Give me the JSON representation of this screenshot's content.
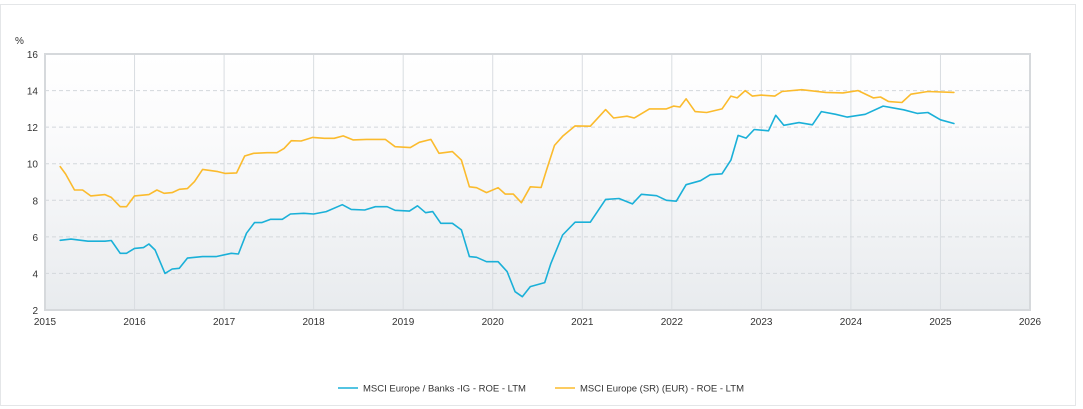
{
  "chart_data": {
    "type": "line",
    "title": "",
    "xlabel": "",
    "ylabel": "%",
    "xlim": [
      2015,
      2026
    ],
    "ylim": [
      2,
      16
    ],
    "x_ticks": [
      "2015",
      "2016",
      "2017",
      "2018",
      "2019",
      "2020",
      "2021",
      "2022",
      "2023",
      "2024",
      "2025",
      "2026"
    ],
    "y_ticks": [
      "2",
      "4",
      "6",
      "8",
      "10",
      "12",
      "14",
      "16"
    ],
    "grid": {
      "x": "solid",
      "y": "dashed"
    },
    "legend": "bottom",
    "series": [
      {
        "name": "MSCI Europe / Banks -IG - ROE - LTM",
        "color": "#1ab0d8",
        "points": [
          [
            2015.17,
            5.81
          ],
          [
            2015.29,
            5.88
          ],
          [
            2015.48,
            5.76
          ],
          [
            2015.67,
            5.76
          ],
          [
            2015.74,
            5.8
          ],
          [
            2015.84,
            5.1
          ],
          [
            2015.91,
            5.1
          ],
          [
            2016.0,
            5.37
          ],
          [
            2016.1,
            5.41
          ],
          [
            2016.16,
            5.61
          ],
          [
            2016.23,
            5.28
          ],
          [
            2016.34,
            4.0
          ],
          [
            2016.42,
            4.24
          ],
          [
            2016.5,
            4.28
          ],
          [
            2016.59,
            4.84
          ],
          [
            2016.76,
            4.92
          ],
          [
            2016.91,
            4.92
          ],
          [
            2017.08,
            5.1
          ],
          [
            2017.16,
            5.06
          ],
          [
            2017.25,
            6.2
          ],
          [
            2017.34,
            6.78
          ],
          [
            2017.42,
            6.78
          ],
          [
            2017.52,
            6.96
          ],
          [
            2017.65,
            6.96
          ],
          [
            2017.74,
            7.25
          ],
          [
            2017.89,
            7.29
          ],
          [
            2018.0,
            7.25
          ],
          [
            2018.14,
            7.38
          ],
          [
            2018.32,
            7.76
          ],
          [
            2018.42,
            7.5
          ],
          [
            2018.57,
            7.47
          ],
          [
            2018.69,
            7.65
          ],
          [
            2018.82,
            7.65
          ],
          [
            2018.91,
            7.45
          ],
          [
            2019.07,
            7.41
          ],
          [
            2019.16,
            7.7
          ],
          [
            2019.25,
            7.32
          ],
          [
            2019.33,
            7.38
          ],
          [
            2019.42,
            6.74
          ],
          [
            2019.55,
            6.74
          ],
          [
            2019.65,
            6.38
          ],
          [
            2019.74,
            4.92
          ],
          [
            2019.82,
            4.88
          ],
          [
            2019.93,
            4.64
          ],
          [
            2020.06,
            4.64
          ],
          [
            2020.16,
            4.1
          ],
          [
            2020.25,
            3.0
          ],
          [
            2020.33,
            2.73
          ],
          [
            2020.42,
            3.28
          ],
          [
            2020.58,
            3.5
          ],
          [
            2020.65,
            4.55
          ],
          [
            2020.78,
            6.1
          ],
          [
            2020.92,
            6.8
          ],
          [
            2021.09,
            6.8
          ],
          [
            2021.26,
            8.05
          ],
          [
            2021.41,
            8.1
          ],
          [
            2021.56,
            7.8
          ],
          [
            2021.66,
            8.33
          ],
          [
            2021.83,
            8.25
          ],
          [
            2021.94,
            8.0
          ],
          [
            2022.05,
            7.95
          ],
          [
            2022.16,
            8.85
          ],
          [
            2022.32,
            9.07
          ],
          [
            2022.43,
            9.4
          ],
          [
            2022.56,
            9.45
          ],
          [
            2022.66,
            10.2
          ],
          [
            2022.74,
            11.55
          ],
          [
            2022.83,
            11.4
          ],
          [
            2022.92,
            11.87
          ],
          [
            2023.08,
            11.8
          ],
          [
            2023.16,
            12.65
          ],
          [
            2023.25,
            12.1
          ],
          [
            2023.42,
            12.25
          ],
          [
            2023.57,
            12.13
          ],
          [
            2023.67,
            12.85
          ],
          [
            2023.83,
            12.7
          ],
          [
            2023.96,
            12.55
          ],
          [
            2024.16,
            12.7
          ],
          [
            2024.36,
            13.15
          ],
          [
            2024.59,
            12.95
          ],
          [
            2024.74,
            12.75
          ],
          [
            2024.86,
            12.8
          ],
          [
            2025.0,
            12.4
          ],
          [
            2025.15,
            12.2
          ]
        ]
      },
      {
        "name": "MSCI Europe (SR) (EUR) - ROE - LTM",
        "color": "#fbbb2d",
        "points": [
          [
            2015.17,
            9.84
          ],
          [
            2015.23,
            9.44
          ],
          [
            2015.33,
            8.56
          ],
          [
            2015.42,
            8.56
          ],
          [
            2015.51,
            8.24
          ],
          [
            2015.67,
            8.31
          ],
          [
            2015.74,
            8.16
          ],
          [
            2015.84,
            7.65
          ],
          [
            2015.91,
            7.65
          ],
          [
            2016.0,
            8.24
          ],
          [
            2016.16,
            8.31
          ],
          [
            2016.25,
            8.56
          ],
          [
            2016.33,
            8.38
          ],
          [
            2016.42,
            8.42
          ],
          [
            2016.5,
            8.6
          ],
          [
            2016.59,
            8.64
          ],
          [
            2016.67,
            9.02
          ],
          [
            2016.76,
            9.69
          ],
          [
            2016.93,
            9.57
          ],
          [
            2017.01,
            9.47
          ],
          [
            2017.14,
            9.5
          ],
          [
            2017.23,
            10.42
          ],
          [
            2017.33,
            10.57
          ],
          [
            2017.48,
            10.6
          ],
          [
            2017.59,
            10.6
          ],
          [
            2017.67,
            10.84
          ],
          [
            2017.75,
            11.26
          ],
          [
            2017.86,
            11.24
          ],
          [
            2017.99,
            11.44
          ],
          [
            2018.12,
            11.39
          ],
          [
            2018.23,
            11.39
          ],
          [
            2018.33,
            11.52
          ],
          [
            2018.44,
            11.3
          ],
          [
            2018.59,
            11.33
          ],
          [
            2018.8,
            11.33
          ],
          [
            2018.91,
            10.93
          ],
          [
            2019.08,
            10.88
          ],
          [
            2019.18,
            11.17
          ],
          [
            2019.31,
            11.33
          ],
          [
            2019.4,
            10.57
          ],
          [
            2019.55,
            10.66
          ],
          [
            2019.65,
            10.2
          ],
          [
            2019.74,
            8.74
          ],
          [
            2019.82,
            8.69
          ],
          [
            2019.93,
            8.42
          ],
          [
            2020.06,
            8.69
          ],
          [
            2020.14,
            8.34
          ],
          [
            2020.23,
            8.34
          ],
          [
            2020.32,
            7.87
          ],
          [
            2020.42,
            8.74
          ],
          [
            2020.54,
            8.7
          ],
          [
            2020.6,
            9.65
          ],
          [
            2020.69,
            11.0
          ],
          [
            2020.78,
            11.5
          ],
          [
            2020.92,
            12.07
          ],
          [
            2021.09,
            12.05
          ],
          [
            2021.26,
            12.96
          ],
          [
            2021.35,
            12.5
          ],
          [
            2021.5,
            12.6
          ],
          [
            2021.58,
            12.5
          ],
          [
            2021.75,
            13.0
          ],
          [
            2021.94,
            13.0
          ],
          [
            2022.02,
            13.15
          ],
          [
            2022.09,
            13.1
          ],
          [
            2022.16,
            13.55
          ],
          [
            2022.26,
            12.85
          ],
          [
            2022.39,
            12.8
          ],
          [
            2022.56,
            13.0
          ],
          [
            2022.66,
            13.7
          ],
          [
            2022.73,
            13.6
          ],
          [
            2022.82,
            14.0
          ],
          [
            2022.9,
            13.7
          ],
          [
            2023.0,
            13.75
          ],
          [
            2023.15,
            13.7
          ],
          [
            2023.23,
            13.95
          ],
          [
            2023.45,
            14.05
          ],
          [
            2023.72,
            13.9
          ],
          [
            2023.91,
            13.87
          ],
          [
            2024.08,
            14.0
          ],
          [
            2024.25,
            13.6
          ],
          [
            2024.33,
            13.65
          ],
          [
            2024.42,
            13.4
          ],
          [
            2024.57,
            13.35
          ],
          [
            2024.67,
            13.8
          ],
          [
            2024.86,
            13.95
          ],
          [
            2025.15,
            13.9
          ]
        ]
      }
    ]
  }
}
